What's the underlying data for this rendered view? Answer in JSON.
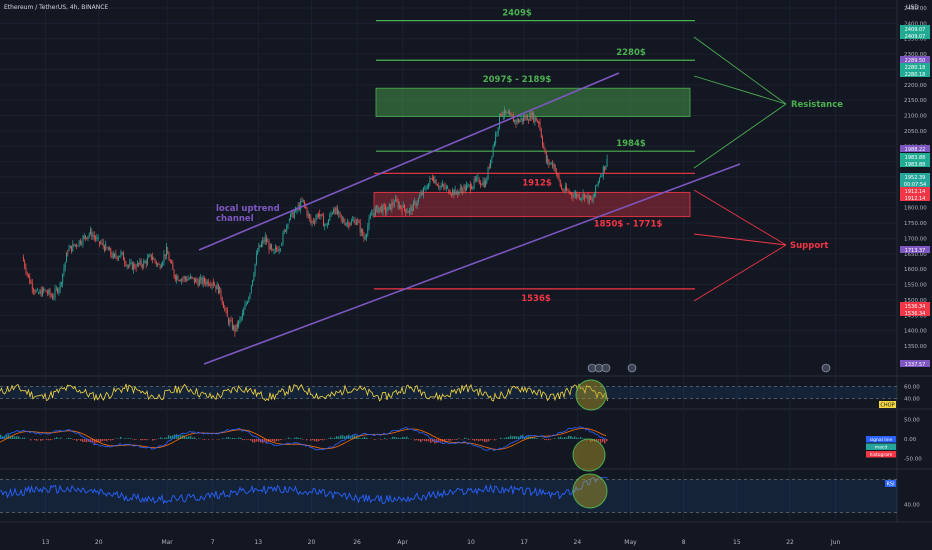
{
  "header": {
    "symbol_info": "Ethereum / TetherUS, 4h, BINANCE",
    "currency": "USD"
  },
  "chart_data": [
    {
      "type": "candlestick",
      "title": "",
      "price_ticks": [
        "2450.00",
        "2400.00",
        "2350.00",
        "2300.00",
        "2250.00",
        "2200.00",
        "2150.00",
        "2100.00",
        "2050.00",
        "2000.00",
        "1950.00",
        "1900.00",
        "1850.00",
        "1800.00",
        "1750.00",
        "1700.00",
        "1650.00",
        "1600.00",
        "1550.00",
        "1500.00",
        "1450.00",
        "1400.00",
        "1350.00"
      ],
      "ylim": [
        1330,
        2470
      ],
      "time_ticks": [
        "13",
        "20",
        "Mar",
        "7",
        "13",
        "20",
        "26",
        "Apr",
        "10",
        "17",
        "24",
        "May",
        "8",
        "15",
        "22",
        "Jun"
      ],
      "close_path": [
        [
          "Feb 10",
          1640
        ],
        [
          "Feb 11",
          1560
        ],
        [
          "Feb 12",
          1520
        ],
        [
          "Feb 13",
          1530
        ],
        [
          "Feb 14",
          1510
        ],
        [
          "Feb 15",
          1550
        ],
        [
          "Feb 16",
          1660
        ],
        [
          "Feb 17",
          1680
        ],
        [
          "Feb 18",
          1700
        ],
        [
          "Feb 19",
          1720
        ],
        [
          "Feb 20",
          1690
        ],
        [
          "Feb 21",
          1670
        ],
        [
          "Feb 22",
          1640
        ],
        [
          "Feb 23",
          1650
        ],
        [
          "Feb 24",
          1610
        ],
        [
          "Feb 25",
          1610
        ],
        [
          "Feb 26",
          1620
        ],
        [
          "Feb 27",
          1640
        ],
        [
          "Feb 28",
          1610
        ],
        [
          "Mar 1",
          1660
        ],
        [
          "Mar 2",
          1580
        ],
        [
          "Mar 3",
          1570
        ],
        [
          "Mar 4",
          1570
        ],
        [
          "Mar 5",
          1560
        ],
        [
          "Mar 6",
          1560
        ],
        [
          "Mar 7",
          1560
        ],
        [
          "Mar 8",
          1530
        ],
        [
          "Mar 9",
          1440
        ],
        [
          "Mar 10",
          1400
        ],
        [
          "Mar 11",
          1450
        ],
        [
          "Mar 12",
          1530
        ],
        [
          "Mar 13",
          1660
        ],
        [
          "Mar 14",
          1700
        ],
        [
          "Mar 15",
          1650
        ],
        [
          "Mar 16",
          1680
        ],
        [
          "Mar 17",
          1760
        ],
        [
          "Mar 18",
          1790
        ],
        [
          "Mar 19",
          1820
        ],
        [
          "Mar 20",
          1750
        ],
        [
          "Mar 21",
          1780
        ],
        [
          "Mar 22",
          1740
        ],
        [
          "Mar 23",
          1800
        ],
        [
          "Mar 24",
          1760
        ],
        [
          "Mar 25",
          1750
        ],
        [
          "Mar 26",
          1760
        ],
        [
          "Mar 27",
          1700
        ],
        [
          "Mar 28",
          1780
        ],
        [
          "Mar 29",
          1800
        ],
        [
          "Mar 30",
          1790
        ],
        [
          "Mar 31",
          1820
        ],
        [
          "Apr 1",
          1800
        ],
        [
          "Apr 2",
          1790
        ],
        [
          "Apr 3",
          1820
        ],
        [
          "Apr 4",
          1860
        ],
        [
          "Apr 5",
          1900
        ],
        [
          "Apr 6",
          1870
        ],
        [
          "Apr 7",
          1860
        ],
        [
          "Apr 8",
          1850
        ],
        [
          "Apr 9",
          1860
        ],
        [
          "Apr 10",
          1870
        ],
        [
          "Apr 11",
          1890
        ],
        [
          "Apr 12",
          1880
        ],
        [
          "Apr 13",
          2000
        ],
        [
          "Apr 14",
          2110
        ],
        [
          "Apr 15",
          2100
        ],
        [
          "Apr 16",
          2080
        ],
        [
          "Apr 17",
          2090
        ],
        [
          "Apr 18",
          2100
        ],
        [
          "Apr 19",
          2080
        ],
        [
          "Apr 20",
          1950
        ],
        [
          "Apr 21",
          1940
        ],
        [
          "Apr 22",
          1860
        ],
        [
          "Apr 23",
          1850
        ],
        [
          "Apr 24",
          1840
        ],
        [
          "Apr 25",
          1840
        ],
        [
          "Apr 26",
          1820
        ],
        [
          "Apr 27",
          1900
        ],
        [
          "Apr 28",
          1952.39
        ]
      ],
      "price_labels": [
        {
          "text": "2409.07",
          "color": "#22ab94"
        },
        {
          "text": "2409.07",
          "color": "#22ab94"
        },
        {
          "text": "2289.50",
          "color": "#7e57c2"
        },
        {
          "text": "2280.18",
          "color": "#22ab94"
        },
        {
          "text": "2280.18",
          "color": "#22ab94"
        },
        {
          "text": "1988.22",
          "color": "#7e57c2"
        },
        {
          "text": "1983.88",
          "color": "#22ab94"
        },
        {
          "text": "1983.88",
          "color": "#22ab94"
        },
        {
          "text": "1952.39",
          "color": "#26a69a"
        },
        {
          "text": "00:07:54",
          "color": "#26a69a"
        },
        {
          "text": "1912.14",
          "color": "#f23645"
        },
        {
          "text": "1912.14",
          "color": "#f23645"
        },
        {
          "text": "1713.37",
          "color": "#7e57c2"
        },
        {
          "text": "1536.34",
          "color": "#f23645"
        },
        {
          "text": "1536.34",
          "color": "#f23645"
        },
        {
          "text": "1337.57",
          "color": "#7e57c2"
        }
      ],
      "annotations": {
        "levels": [
          {
            "label": "2409$",
            "price": 2409,
            "color": "#4caf50"
          },
          {
            "label": "2280$",
            "price": 2280,
            "color": "#4caf50"
          },
          {
            "label": "1984$",
            "price": 1984,
            "color": "#4caf50"
          },
          {
            "label": "1912$",
            "price": 1912,
            "color": "#f23645"
          },
          {
            "label": "1536$",
            "price": 1536,
            "color": "#f23645"
          }
        ],
        "zones": [
          {
            "label": "2097$ - 2189$",
            "low": 2097,
            "high": 2189,
            "color": "#4caf50"
          },
          {
            "label": "1850$ - 1771$",
            "low": 1771,
            "high": 1850,
            "color": "#f23645"
          }
        ],
        "channel_label": [
          "local uptrend",
          "channel"
        ],
        "resistance_label": "Resistance",
        "support_label": "Support"
      }
    },
    {
      "type": "line",
      "title": "",
      "ticks": [
        "60.00",
        "40.00"
      ],
      "ylim": [
        25,
        75
      ],
      "band": [
        40,
        60
      ],
      "tag": "CHOP",
      "color": "#f5d742"
    },
    {
      "type": "bar",
      "title": "",
      "ticks": [
        "50.00",
        "0.00",
        "-50.00"
      ],
      "ylim": [
        -75,
        75
      ],
      "legend": [
        "signal line",
        "macd",
        "histogram"
      ],
      "colors": {
        "macd": "#2962ff",
        "signal": "#ff6d00",
        "hist_pos": "#26a69a",
        "hist_neg": "#ef5350"
      }
    },
    {
      "type": "line",
      "title": "",
      "ticks": [
        "40.00"
      ],
      "ylim": [
        20,
        80
      ],
      "band": [
        30,
        70
      ],
      "tag": "RSI",
      "color": "#2962ff"
    }
  ]
}
